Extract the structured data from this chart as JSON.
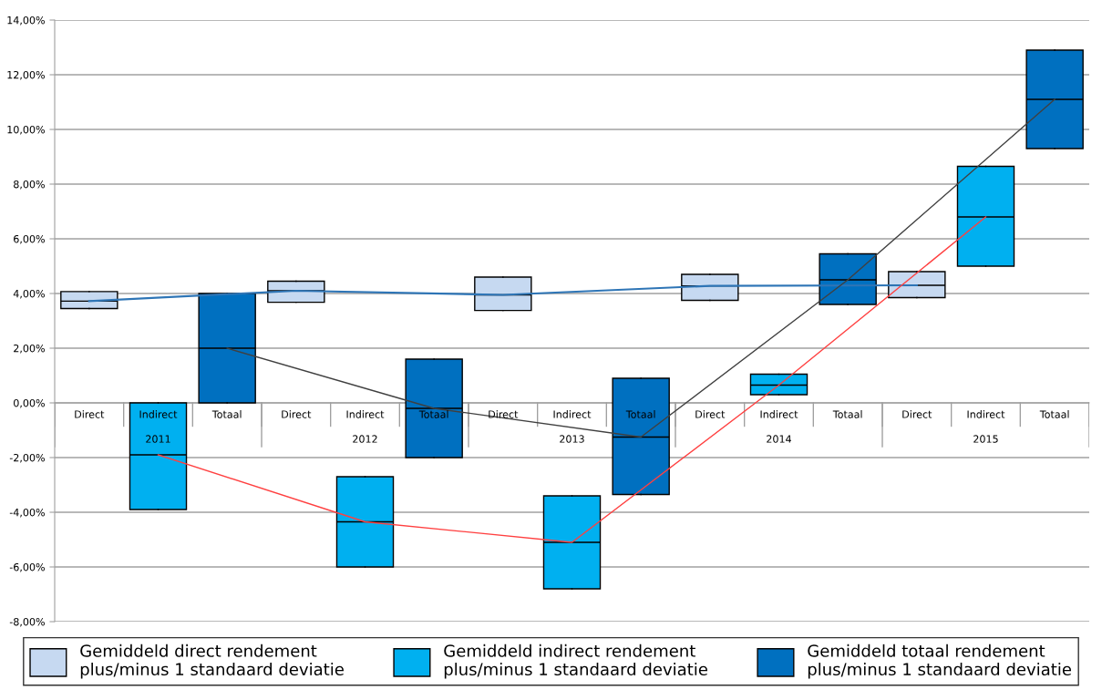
{
  "chart_data": {
    "type": "box",
    "categories": [
      "Direct",
      "Indirect",
      "Totaal",
      "Direct",
      "Indirect",
      "Totaal",
      "Direct",
      "Indirect",
      "Totaal",
      "Direct",
      "Indirect",
      "Totaal",
      "Direct",
      "Indirect",
      "Totaal"
    ],
    "annotations": [
      "2011",
      "2012",
      "2013",
      "2014",
      "2015"
    ],
    "series": [
      {
        "name": "Gemiddeld direct rendement plus/minus 1 standaard deviatie",
        "color": "#c6d9f1",
        "boxes": [
          {
            "low": 3.45,
            "q1": 3.45,
            "median": 3.72,
            "q3": 4.07,
            "high": 4.07
          },
          null,
          null,
          {
            "low": 3.68,
            "q1": 3.68,
            "median": 4.1,
            "q3": 4.45,
            "high": 4.45
          },
          null,
          null,
          {
            "low": 3.38,
            "q1": 3.38,
            "median": 3.95,
            "q3": 4.6,
            "high": 4.6
          },
          null,
          null,
          {
            "low": 3.75,
            "q1": 3.75,
            "median": 4.28,
            "q3": 4.7,
            "high": 4.7
          },
          null,
          null,
          {
            "low": 3.85,
            "q1": 3.85,
            "median": 4.3,
            "q3": 4.8,
            "high": 4.8
          },
          null,
          null
        ]
      },
      {
        "name": "Gemiddeld indirect rendement plus/minus 1 standaard deviatie",
        "color": "#00b0f0",
        "boxes": [
          null,
          {
            "low": -3.9,
            "q1": -3.9,
            "median": -1.9,
            "q3": 0,
            "high": 0
          },
          null,
          null,
          {
            "low": -6.0,
            "q1": -6.0,
            "median": -4.35,
            "q3": -2.7,
            "high": -2.7
          },
          null,
          null,
          {
            "low": -6.8,
            "q1": -6.8,
            "median": -5.1,
            "q3": -3.4,
            "high": -3.4
          },
          null,
          null,
          {
            "low": 0.3,
            "q1": 0.3,
            "median": 0.65,
            "q3": 1.05,
            "high": 1.05
          },
          null,
          null,
          {
            "low": 5.0,
            "q1": 5.0,
            "median": 6.8,
            "q3": 8.65,
            "high": 8.65
          },
          null
        ]
      },
      {
        "name": "Gemiddeld totaal rendement plus/minus 1 standaard deviatie",
        "color": "#0070c0",
        "boxes": [
          null,
          null,
          {
            "low": 0,
            "q1": 0,
            "median": 2.0,
            "q3": 4.0,
            "high": 4.0
          },
          null,
          null,
          {
            "low": -2.0,
            "q1": -2.0,
            "median": -0.2,
            "q3": 1.6,
            "high": 1.6
          },
          null,
          null,
          {
            "low": -3.35,
            "q1": -3.35,
            "median": -1.25,
            "q3": 0.9,
            "high": 0.9
          },
          null,
          null,
          {
            "low": 3.6,
            "q1": 3.6,
            "median": 4.5,
            "q3": 5.45,
            "high": 5.45
          },
          null,
          null,
          {
            "low": 9.3,
            "q1": 9.3,
            "median": 11.1,
            "q3": 12.9,
            "high": 12.9
          }
        ]
      },
      {
        "type": "line",
        "color": "#2e75b6",
        "values": [
          3.72,
          null,
          null,
          4.1,
          null,
          null,
          3.95,
          null,
          null,
          4.28,
          null,
          null,
          4.3,
          null,
          null
        ]
      },
      {
        "type": "line",
        "color": "#ff4040",
        "values": [
          null,
          -1.9,
          null,
          null,
          -4.35,
          null,
          null,
          -5.1,
          null,
          null,
          0.65,
          null,
          null,
          6.8,
          null
        ]
      },
      {
        "type": "line",
        "color": "#404040",
        "values": [
          null,
          null,
          2.0,
          null,
          null,
          -0.2,
          null,
          null,
          -1.25,
          null,
          null,
          4.5,
          null,
          null,
          11.1
        ]
      }
    ],
    "ylim": [
      -8,
      14
    ],
    "yticks": [
      {
        "value": -8,
        "label": "-8,00%"
      },
      {
        "value": -6,
        "label": "-6,00%"
      },
      {
        "value": -4,
        "label": "-4,00%"
      },
      {
        "value": -2,
        "label": "-2,00%"
      },
      {
        "value": 0,
        "label": "0,00%"
      },
      {
        "value": 2,
        "label": "2,00%"
      },
      {
        "value": 4,
        "label": "4,00%"
      },
      {
        "value": 6,
        "label": "6,00%"
      },
      {
        "value": 8,
        "label": "8,00%"
      },
      {
        "value": 10,
        "label": "10,00%"
      },
      {
        "value": 12,
        "label": "12,00%"
      },
      {
        "value": 14,
        "label": "14,00%"
      }
    ],
    "grid": "y",
    "legend": "bottom"
  }
}
